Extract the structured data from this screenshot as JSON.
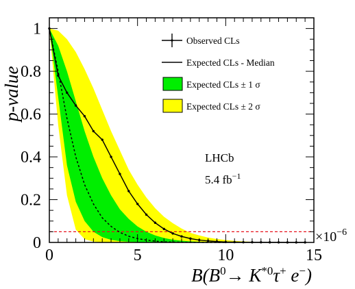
{
  "chart_data": {
    "type": "line",
    "xlabel": {
      "prefix": "B(B",
      "sup1": "0",
      "arrow": "→ K",
      "sup2": "*0",
      "tau": "τ",
      "sup3": "+",
      "e": " e",
      "sup4": "−",
      "close": ")"
    },
    "ylabel": "p-value",
    "xlim": [
      0,
      15
    ],
    "ylim": [
      0,
      1.05
    ],
    "x_ticks": [
      "0",
      "5",
      "10",
      "15"
    ],
    "y_ticks": [
      "0",
      "0.2",
      "0.4",
      "0.6",
      "0.8",
      "1"
    ],
    "x_multiplier": {
      "base": "×10",
      "exp": "−6"
    },
    "annotations": {
      "experiment": "LHCb",
      "luminosity": "5.4 fb",
      "luminosity_exp": "−1"
    },
    "threshold": {
      "y": 0.05,
      "color": "#e8101a"
    },
    "legend": {
      "position": "top-right",
      "entries": [
        {
          "label": "Observed CLs",
          "style": "marker-errorbar",
          "color": "#000000"
        },
        {
          "label": "Expected CLs - Median",
          "style": "line",
          "color": "#000000"
        },
        {
          "label": "Expected CLs ± 1 σ",
          "style": "box",
          "color": "#00ee00"
        },
        {
          "label": "Expected CLs ± 2 σ",
          "style": "box",
          "color": "#ffff00"
        }
      ]
    },
    "series": [
      {
        "name": "Observed CLs",
        "style": "solid-with-markers",
        "color": "#000000",
        "points": [
          [
            0,
            1.0
          ],
          [
            0.5,
            0.78
          ],
          [
            1,
            0.7
          ],
          [
            1.5,
            0.64
          ],
          [
            2,
            0.59
          ],
          [
            2.5,
            0.52
          ],
          [
            3,
            0.48
          ],
          [
            3.5,
            0.4
          ],
          [
            4,
            0.32
          ],
          [
            4.5,
            0.24
          ],
          [
            5,
            0.18
          ],
          [
            5.5,
            0.13
          ],
          [
            6,
            0.092
          ],
          [
            6.5,
            0.063
          ],
          [
            7,
            0.042
          ],
          [
            7.5,
            0.028
          ],
          [
            8,
            0.018
          ],
          [
            8.5,
            0.011
          ],
          [
            9,
            0.007
          ],
          [
            9.5,
            0.004
          ],
          [
            10,
            0.002
          ],
          [
            10.5,
            0.0015
          ],
          [
            11,
            0.001
          ],
          [
            11.5,
            0.0008
          ],
          [
            12,
            0.0006
          ],
          [
            12.5,
            0.0004
          ],
          [
            13,
            0.0003
          ],
          [
            13.5,
            0.0002
          ],
          [
            14,
            0.0001
          ],
          [
            14.5,
            0.0001
          ]
        ]
      },
      {
        "name": "Expected CLs - Median",
        "style": "dashed",
        "color": "#000000",
        "points": [
          [
            0,
            1.0
          ],
          [
            0.5,
            0.8
          ],
          [
            1,
            0.58
          ],
          [
            1.5,
            0.4
          ],
          [
            2,
            0.27
          ],
          [
            2.5,
            0.18
          ],
          [
            3,
            0.115
          ],
          [
            3.5,
            0.075
          ],
          [
            4,
            0.047
          ],
          [
            4.5,
            0.029
          ],
          [
            5,
            0.018
          ],
          [
            5.5,
            0.011
          ],
          [
            6,
            0.006
          ],
          [
            6.5,
            0.003
          ],
          [
            7,
            0.002
          ],
          [
            7.5,
            0.001
          ],
          [
            8,
            0.0005
          ],
          [
            9,
            0.0001
          ],
          [
            10,
            0.0
          ]
        ]
      }
    ],
    "bands": [
      {
        "name": "Expected CLs ± 2 σ",
        "color": "#ffff00",
        "x": [
          0,
          0.5,
          1,
          1.5,
          2,
          2.5,
          3,
          3.5,
          4,
          4.5,
          5,
          5.5,
          6,
          6.5,
          7,
          7.5,
          8,
          8.5,
          9,
          9.5,
          10,
          10.5,
          11,
          11.5,
          12,
          12.5,
          13,
          14,
          15
        ],
        "upper": [
          1.0,
          0.99,
          0.95,
          0.89,
          0.81,
          0.72,
          0.62,
          0.52,
          0.43,
          0.34,
          0.27,
          0.21,
          0.16,
          0.12,
          0.09,
          0.065,
          0.045,
          0.033,
          0.023,
          0.016,
          0.011,
          0.007,
          0.005,
          0.003,
          0.002,
          0.0015,
          0.001,
          0.0005,
          0.0002
        ],
        "lower": [
          1.0,
          0.55,
          0.22,
          0.06,
          0.015,
          0.004,
          0.001,
          0.0003,
          0.0001,
          0,
          0,
          0,
          0,
          0,
          0,
          0,
          0,
          0,
          0,
          0,
          0,
          0,
          0,
          0,
          0,
          0,
          0,
          0,
          0
        ]
      },
      {
        "name": "Expected CLs ± 1 σ",
        "color": "#00ee00",
        "x": [
          0,
          0.5,
          1,
          1.5,
          2,
          2.5,
          3,
          3.5,
          4,
          4.5,
          5,
          5.5,
          6,
          6.5,
          7,
          7.5,
          8,
          8.5,
          9,
          9.5,
          10
        ],
        "upper": [
          1.0,
          0.92,
          0.8,
          0.66,
          0.52,
          0.4,
          0.3,
          0.22,
          0.155,
          0.11,
          0.075,
          0.05,
          0.033,
          0.021,
          0.013,
          0.008,
          0.005,
          0.003,
          0.002,
          0.001,
          0.0005
        ],
        "lower": [
          1.0,
          0.68,
          0.36,
          0.19,
          0.1,
          0.05,
          0.025,
          0.012,
          0.006,
          0.003,
          0.0015,
          0.0008,
          0.0004,
          0.0002,
          0.0001,
          0,
          0,
          0,
          0,
          0,
          0
        ]
      }
    ]
  }
}
